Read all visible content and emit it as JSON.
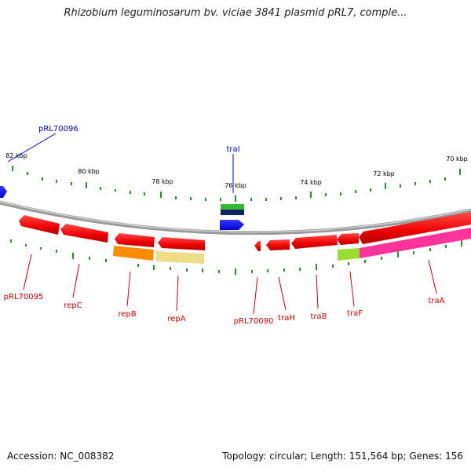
{
  "header": {
    "title": "Rhizobium leguminosarum bv. viciae 3841 plasmid pRL7, comple..."
  },
  "footer": {
    "accession": "Accession: NC_008382",
    "topology": "Topology: circular; Length: 151,564 bp; Genes: 156"
  },
  "scale": {
    "ticks": [
      {
        "label": "82 kbp",
        "kbp": 82
      },
      {
        "label": "80 kbp",
        "kbp": 80
      },
      {
        "label": "78 kbp",
        "kbp": 78
      },
      {
        "label": "76 kbp",
        "kbp": 76
      },
      {
        "label": "74 kbp",
        "kbp": 74
      },
      {
        "label": "72 kbp",
        "kbp": 72
      },
      {
        "label": "70 kbp",
        "kbp": 70
      }
    ]
  },
  "features": {
    "forward_labels": [
      {
        "name": "pRL70096",
        "color": "#0000cc"
      },
      {
        "name": "traI",
        "color": "#0000cc"
      }
    ],
    "reverse_labels": [
      {
        "name": "pRL70095",
        "color": "#cc0000"
      },
      {
        "name": "repC",
        "color": "#cc0000"
      },
      {
        "name": "repB",
        "color": "#cc0000"
      },
      {
        "name": "repA",
        "color": "#cc0000"
      },
      {
        "name": "pRL70090",
        "color": "#cc0000"
      },
      {
        "name": "traH",
        "color": "#cc0000"
      },
      {
        "name": "traB",
        "color": "#cc0000"
      },
      {
        "name": "traF",
        "color": "#cc0000"
      },
      {
        "name": "traA",
        "color": "#cc0000"
      }
    ]
  },
  "colors": {
    "forward_cds": "#0000ff",
    "reverse_cds": "#ff0000",
    "backbone": "#888888",
    "gc_ticks": "#2e8b2e",
    "repB_overlay": "#ff8c00",
    "repA_overlay": "#eedd88",
    "traF_overlay": "#99dd33",
    "traA_overlay": "#ff3399",
    "traI_green": "#33bb33",
    "traI_navy": "#112266"
  }
}
